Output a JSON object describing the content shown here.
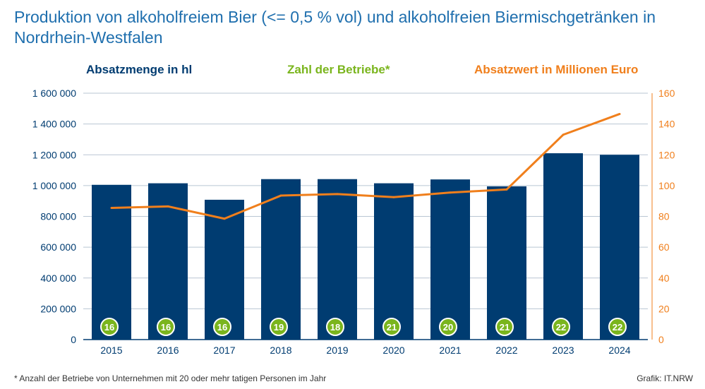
{
  "title": "Produktion von alkoholfreiem Bier (<= 0,5 % vol) und alkoholfreien Biermischgetränken in Nordrhein-Westfalen",
  "footnote": "* Anzahl der Betriebe von Unternehmen mit 20 oder mehr tatigen Personen im Jahr",
  "source": "Grafik: IT.NRW",
  "colors": {
    "bar": "#003c71",
    "line": "#f07f1c",
    "badge": "#7ab51d",
    "grid": "#b9c6d3",
    "left_axis_text": "#003c71",
    "right_axis_text": "#f07f1c"
  },
  "chart_data": {
    "type": "bar",
    "categories": [
      "2015",
      "2016",
      "2017",
      "2018",
      "2019",
      "2020",
      "2021",
      "2022",
      "2023",
      "2024"
    ],
    "series": [
      {
        "name": "Absatzmenge in hl",
        "type": "bar",
        "axis": "left",
        "values": [
          1005000,
          1015000,
          908000,
          1042000,
          1042000,
          1015000,
          1040000,
          995000,
          1210000,
          1200000
        ]
      },
      {
        "name": "Absatzwert in Millionen Euro",
        "type": "line",
        "axis": "right",
        "values": [
          85.5,
          86.5,
          78.5,
          93.5,
          94.5,
          92.5,
          95.5,
          97.5,
          133,
          146.5
        ]
      },
      {
        "name": "Zahl der Betriebe*",
        "type": "badge",
        "values": [
          16,
          16,
          16,
          19,
          18,
          21,
          20,
          21,
          22,
          22
        ]
      }
    ],
    "ylim_left": [
      0,
      1600000
    ],
    "ylim_right": [
      0,
      160
    ],
    "yticks_left": [
      "0",
      "200 000",
      "400 000",
      "600 000",
      "800 000",
      "1 000 000",
      "1 200 000",
      "1 400 000",
      "1 600 000"
    ],
    "yticks_right": [
      "0",
      "20",
      "40",
      "60",
      "80",
      "100",
      "120",
      "140",
      "160"
    ],
    "grid": true
  }
}
